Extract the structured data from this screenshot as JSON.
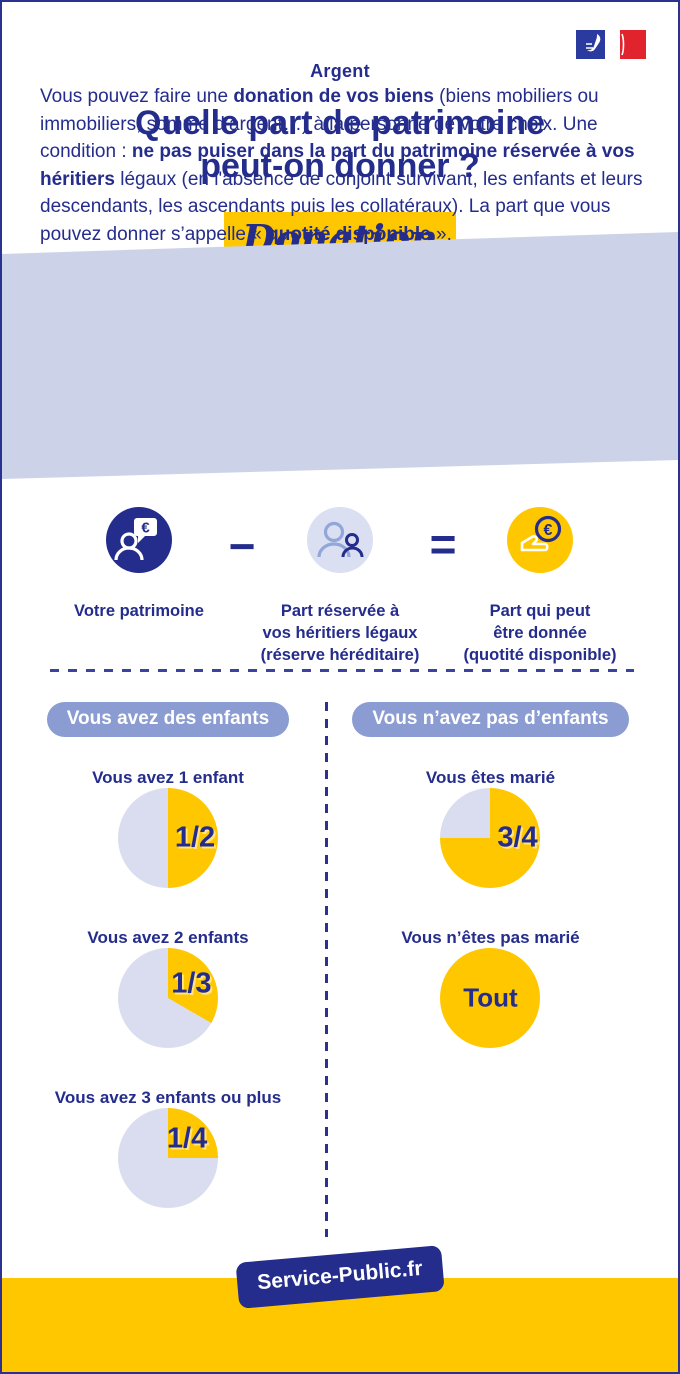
{
  "header": {
    "category": "Argent",
    "title_line1": "Quelle part de patrimoine",
    "title_line2": "peut-on donner ?",
    "tag": "Donation",
    "logo_icon": "france-marianne-flag-logo"
  },
  "intro": {
    "segments": [
      {
        "text": "Vous pouvez faire une ",
        "bold": false
      },
      {
        "text": "donation de vos biens",
        "bold": true
      },
      {
        "text": " (biens mobiliers ou immobiliers, somme d’argent…) à la personne de votre choix. Une condition : ",
        "bold": false
      },
      {
        "text": "ne pas puiser dans la part du patrimoine réservée à vos héritiers",
        "bold": true
      },
      {
        "text": " légaux (en l'absence de conjoint survivant, les enfants et leurs descendants, les ascendants puis les collatéraux). La part que vous pouvez donner s’appelle « ",
        "bold": false
      },
      {
        "text": "quotité disponible",
        "bold": true
      },
      {
        "text": " ».",
        "bold": false
      }
    ]
  },
  "equation": {
    "items": [
      {
        "icon": "patrimony-person-euro-bubble-icon",
        "label": "Votre patrimoine"
      },
      {
        "icon": "heirs-two-persons-icon",
        "label": "Part réservée à\nvos héritiers légaux\n(réserve héréditaire)"
      },
      {
        "icon": "donation-hand-euro-coin-icon",
        "label": "Part qui peut\nêtre donnée\n(quotité disponible)"
      }
    ],
    "minus": "−",
    "equals": "=",
    "euro_glyph": "€"
  },
  "columns": {
    "left_header": "Vous avez des enfants",
    "right_header": "Vous n’avez pas d’enfants"
  },
  "chart_data": [
    {
      "type": "pie",
      "group": "enfants",
      "title": "Vous avez 1 enfant",
      "value_label": "1/2",
      "fraction": 0.5,
      "slices": [
        {
          "name": "quotité disponible",
          "value": 0.5,
          "color": "#ffc700"
        },
        {
          "name": "réserve héréditaire",
          "value": 0.5,
          "color": "#d9ddef"
        }
      ]
    },
    {
      "type": "pie",
      "group": "enfants",
      "title": "Vous avez 2 enfants",
      "value_label": "1/3",
      "fraction": 0.3333,
      "slices": [
        {
          "name": "quotité disponible",
          "value": 0.3333,
          "color": "#ffc700"
        },
        {
          "name": "réserve héréditaire",
          "value": 0.6667,
          "color": "#d9ddef"
        }
      ]
    },
    {
      "type": "pie",
      "group": "enfants",
      "title": "Vous avez 3 enfants ou plus",
      "value_label": "1/4",
      "fraction": 0.25,
      "slices": [
        {
          "name": "quotité disponible",
          "value": 0.25,
          "color": "#ffc700"
        },
        {
          "name": "réserve héréditaire",
          "value": 0.75,
          "color": "#d9ddef"
        }
      ]
    },
    {
      "type": "pie",
      "group": "sans-enfants",
      "title": "Vous êtes marié",
      "value_label": "3/4",
      "fraction": 0.75,
      "slices": [
        {
          "name": "quotité disponible",
          "value": 0.75,
          "color": "#ffc700"
        },
        {
          "name": "réserve héréditaire",
          "value": 0.25,
          "color": "#d9ddef"
        }
      ]
    },
    {
      "type": "pie",
      "group": "sans-enfants",
      "title": "Vous n’êtes pas marié",
      "value_label": "Tout",
      "fraction": 1,
      "slices": [
        {
          "name": "quotité disponible",
          "value": 1,
          "color": "#ffc700"
        }
      ]
    }
  ],
  "footer": {
    "brand": "Service-Public.fr"
  },
  "colors": {
    "navy": "#242c8c",
    "yellow": "#ffc700",
    "intro_band": "#ccd3e9",
    "pie_rest": "#d9ddef",
    "pill_blue": "#8a9cd1",
    "flag_blue": "#2b3a9e",
    "flag_red": "#e1232d"
  }
}
